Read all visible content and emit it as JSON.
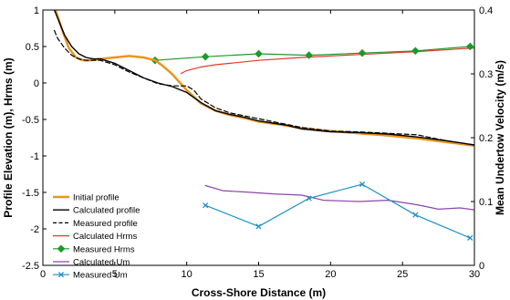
{
  "chart_data": {
    "type": "line",
    "xlabel": "Cross-Shore Distance (m)",
    "ylabel": "Profile Elevation (m), Hrms (m)",
    "y2label": "Mean Undertow Velocity (m/s)",
    "xlim": [
      0,
      30
    ],
    "ylim": [
      -2.5,
      1
    ],
    "y2lim": [
      0,
      0.4
    ],
    "xticks": [
      0,
      5,
      10,
      15,
      20,
      25,
      30
    ],
    "yticks": [
      -2.5,
      -2,
      -1.5,
      -1,
      -0.5,
      0,
      0.5,
      1
    ],
    "y2ticks": [
      0,
      0.1,
      0.2,
      0.3,
      0.4
    ],
    "xtick_labels": [
      "0",
      "5",
      "10",
      "15",
      "20",
      "25",
      "30"
    ],
    "ytick_labels": [
      "-2.5",
      "-2",
      "-1.5",
      "-1",
      "-0.5",
      "0",
      "0.5",
      "1"
    ],
    "y2tick_labels": [
      "0",
      "0.1",
      "0.2",
      "0.3",
      "0.4"
    ],
    "grid": false,
    "legend_position": "lower-left",
    "series": [
      {
        "name": "Initial profile",
        "axis": "left",
        "color": "#E8961E",
        "dash": "solid",
        "width": 2.5,
        "marker": "none",
        "x": [
          0.8,
          1.3,
          1.8,
          2.3,
          2.8,
          3.2,
          4.0,
          5.0,
          6.0,
          7.0,
          7.8,
          8.3,
          9.0,
          10.0,
          11.0,
          12.0,
          13.0,
          14.0,
          15.0,
          16.5,
          18.0,
          20.0,
          22.0,
          24.0,
          26.0,
          28.0,
          30.0
        ],
        "y": [
          1.05,
          0.75,
          0.48,
          0.35,
          0.31,
          0.31,
          0.33,
          0.35,
          0.37,
          0.35,
          0.31,
          0.24,
          0.12,
          -0.1,
          -0.28,
          -0.38,
          -0.44,
          -0.48,
          -0.53,
          -0.57,
          -0.62,
          -0.66,
          -0.69,
          -0.72,
          -0.76,
          -0.81,
          -0.86
        ]
      },
      {
        "name": "Calculated profile",
        "axis": "left",
        "color": "#000000",
        "dash": "solid",
        "width": 1.4,
        "marker": "none",
        "x": [
          0.8,
          1.5,
          2.0,
          2.5,
          3.0,
          3.5,
          4.0,
          5.0,
          6.0,
          7.0,
          8.0,
          9.0,
          10.0,
          11.0,
          12.0,
          13.0,
          14.0,
          15.0,
          16.0,
          17.0,
          18.0,
          20.0,
          22.0,
          24.0,
          26.0,
          28.0,
          30.0
        ],
        "y": [
          1.0,
          0.66,
          0.5,
          0.4,
          0.35,
          0.33,
          0.33,
          0.27,
          0.17,
          0.07,
          0.0,
          -0.05,
          -0.13,
          -0.27,
          -0.38,
          -0.43,
          -0.47,
          -0.52,
          -0.55,
          -0.58,
          -0.63,
          -0.67,
          -0.68,
          -0.7,
          -0.74,
          -0.79,
          -0.85
        ]
      },
      {
        "name": "Measured profile",
        "axis": "left",
        "color": "#000000",
        "dash": "dashed",
        "width": 1.2,
        "marker": "none",
        "x": [
          0.8,
          1.0,
          1.5,
          2.0,
          2.5,
          3.0,
          3.5,
          4.0,
          5.0,
          6.0,
          7.0,
          8.0,
          9.0,
          10.0,
          10.5,
          11.0,
          12.0,
          13.0,
          14.0,
          15.0,
          16.0,
          17.0,
          18.0,
          20.0,
          22.0,
          24.0,
          26.0,
          28.0,
          30.0
        ],
        "y": [
          0.72,
          0.62,
          0.48,
          0.38,
          0.33,
          0.31,
          0.31,
          0.31,
          0.25,
          0.15,
          0.07,
          -0.01,
          -0.04,
          -0.04,
          -0.1,
          -0.22,
          -0.34,
          -0.41,
          -0.45,
          -0.49,
          -0.53,
          -0.57,
          -0.61,
          -0.66,
          -0.67,
          -0.69,
          -0.71,
          -0.79,
          -0.85
        ]
      },
      {
        "name": "Calculated Hrms",
        "axis": "left",
        "color": "#E8382A",
        "dash": "solid",
        "width": 1.2,
        "marker": "none",
        "x": [
          9.6,
          10.0,
          11.0,
          12.0,
          13.0,
          15.0,
          18.0,
          22.0,
          26.0,
          30.0
        ],
        "y": [
          0.13,
          0.17,
          0.22,
          0.25,
          0.27,
          0.31,
          0.35,
          0.39,
          0.43,
          0.48
        ]
      },
      {
        "name": "Measured Hrms",
        "axis": "left",
        "color": "#1A9A2A",
        "dash": "solid",
        "width": 1.2,
        "marker": "diamond",
        "x": [
          7.8,
          11.3,
          15.0,
          18.5,
          22.2,
          25.9,
          29.7
        ],
        "y": [
          0.31,
          0.36,
          0.4,
          0.38,
          0.41,
          0.44,
          0.5
        ]
      },
      {
        "name": "Calculated Um",
        "axis": "right",
        "color": "#8C46A8",
        "dash": "solid",
        "width": 1.2,
        "marker": "none",
        "x": [
          11.3,
          12.5,
          14.0,
          16.0,
          18.0,
          19.5,
          22.0,
          24.0,
          26.0,
          27.5,
          29.0,
          30.0
        ],
        "y": [
          0.125,
          0.117,
          0.115,
          0.112,
          0.11,
          0.102,
          0.1,
          0.102,
          0.095,
          0.088,
          0.09,
          0.087
        ]
      },
      {
        "name": "Measured Um",
        "axis": "right",
        "color": "#1E8FC8",
        "dash": "solid",
        "width": 1.2,
        "marker": "x",
        "x": [
          11.3,
          15.0,
          18.5,
          22.2,
          25.9,
          29.7
        ],
        "y": [
          0.094,
          0.061,
          0.105,
          0.127,
          0.079,
          0.043
        ]
      }
    ]
  }
}
